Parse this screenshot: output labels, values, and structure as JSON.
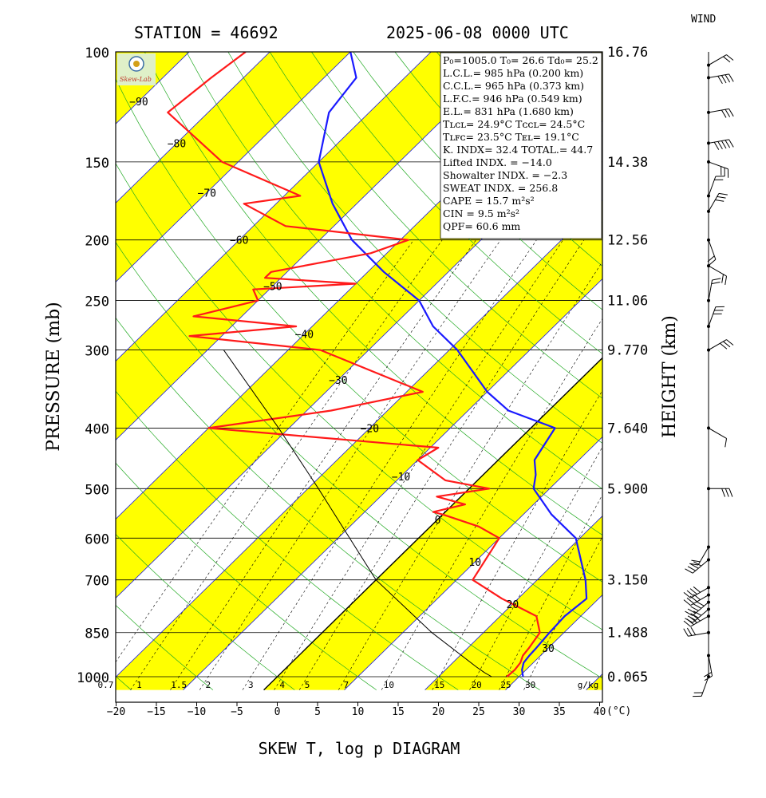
{
  "header": {
    "station": "STATION = 46692",
    "datetime": "2025-06-08 0000 UTC",
    "wind_label": "WIND",
    "footer": "SKEW T, log p DIAGRAM"
  },
  "axes": {
    "y_title": "PRESSURE (mb)",
    "right_title": "HEIGHT (km)",
    "x_unit": "(°C)"
  },
  "chart_data": {
    "type": "line",
    "title": "SKEW T, log p DIAGRAM",
    "xlabel": "(°C)",
    "ylabel": "PRESSURE (mb)",
    "xlim": [
      -20,
      40
    ],
    "ylim": [
      1000,
      100
    ],
    "y_scale": "log",
    "x_ticks": [
      "−20",
      "−15",
      "−10",
      "−5",
      "0",
      "5",
      "10",
      "15",
      "20",
      "25",
      "30",
      "35",
      "40"
    ],
    "pressure_ticks": [
      {
        "p": 100,
        "label": "100",
        "height": "16.76"
      },
      {
        "p": 150,
        "label": "150",
        "height": "14.38"
      },
      {
        "p": 200,
        "label": "200",
        "height": "12.56"
      },
      {
        "p": 250,
        "label": "250",
        "height": "11.06"
      },
      {
        "p": 300,
        "label": "300",
        "height": "9.770"
      },
      {
        "p": 400,
        "label": "400",
        "height": "7.640"
      },
      {
        "p": 500,
        "label": "500",
        "height": "5.900"
      },
      {
        "p": 600,
        "label": "600",
        "height": ""
      },
      {
        "p": 700,
        "label": "700",
        "height": "3.150"
      },
      {
        "p": 850,
        "label": "850",
        "height": "1.488"
      },
      {
        "p": 1000,
        "label": "1000",
        "height": "0.065"
      }
    ],
    "isotherm_labels": [
      {
        "t": -90,
        "label": "−90"
      },
      {
        "t": -80,
        "label": "−80"
      },
      {
        "t": -70,
        "label": "−70"
      },
      {
        "t": -60,
        "label": "−60"
      },
      {
        "t": -50,
        "label": "−50"
      },
      {
        "t": -40,
        "label": "−40"
      },
      {
        "t": -30,
        "label": "−30"
      },
      {
        "t": -20,
        "label": "−20"
      },
      {
        "t": -10,
        "label": "−10"
      },
      {
        "t": 0,
        "label": "0"
      },
      {
        "t": 10,
        "label": "10"
      },
      {
        "t": 20,
        "label": "20"
      },
      {
        "t": 30,
        "label": "30"
      }
    ],
    "mixing_ratio_labels": [
      "0.7",
      "1",
      "1.5",
      "2",
      "3",
      "4",
      "5",
      "7",
      "10",
      "15",
      "20",
      "25",
      "30",
      "g/kg"
    ],
    "mixing_ratio_values": [
      0.7,
      1,
      1.5,
      2,
      3,
      4,
      5,
      7,
      10,
      15,
      20,
      25,
      30
    ],
    "series": [
      {
        "role": "temperature",
        "color": "#1a1aff",
        "points": [
          [
            1000,
            30.5
          ],
          [
            975,
            29.5
          ],
          [
            950,
            28.8
          ],
          [
            925,
            28.6
          ],
          [
            900,
            28.5
          ],
          [
            850,
            28.2
          ],
          [
            800,
            28.0
          ],
          [
            750,
            28.5
          ],
          [
            700,
            26.0
          ],
          [
            600,
            19.5
          ],
          [
            550,
            13.5
          ],
          [
            500,
            8.0
          ],
          [
            475,
            6.5
          ],
          [
            450,
            4.5
          ],
          [
            400,
            3.0
          ],
          [
            375,
            -5.0
          ],
          [
            350,
            -10.0
          ],
          [
            300,
            -19.0
          ],
          [
            275,
            -25.0
          ],
          [
            250,
            -30.0
          ],
          [
            225,
            -38.0
          ],
          [
            200,
            -46.0
          ],
          [
            175,
            -53.0
          ],
          [
            150,
            -60.0
          ],
          [
            125,
            -65.0
          ],
          [
            110,
            -66.0
          ],
          [
            100,
            -70.0
          ]
        ]
      },
      {
        "role": "dewpoint",
        "color": "#ff1a1a",
        "points": [
          [
            1000,
            28.5
          ],
          [
            975,
            28.6
          ],
          [
            950,
            28.4
          ],
          [
            925,
            27.8
          ],
          [
            900,
            27.6
          ],
          [
            850,
            27.0
          ],
          [
            800,
            24.5
          ],
          [
            750,
            18.0
          ],
          [
            700,
            12.0
          ],
          [
            600,
            10.0
          ],
          [
            575,
            6.0
          ],
          [
            550,
            0.0
          ],
          [
            545,
            -1.5
          ],
          [
            530,
            1.5
          ],
          [
            515,
            -3.0
          ],
          [
            500,
            2.5
          ],
          [
            485,
            -4.0
          ],
          [
            450,
            -10.0
          ],
          [
            430,
            -9.0
          ],
          [
            400,
            -40.0
          ],
          [
            375,
            -27.0
          ],
          [
            350,
            -18.0
          ],
          [
            300,
            -36.0
          ],
          [
            285,
            -54.0
          ],
          [
            275,
            -42.0
          ],
          [
            265,
            -56.0
          ],
          [
            250,
            -50.0
          ],
          [
            240,
            -52.0
          ],
          [
            235,
            -40.0
          ],
          [
            230,
            -52.0
          ],
          [
            225,
            -52.0
          ],
          [
            210,
            -42.0
          ],
          [
            200,
            -39.0
          ],
          [
            190,
            -56.0
          ],
          [
            175,
            -64.0
          ],
          [
            170,
            -58.0
          ],
          [
            150,
            -72.0
          ],
          [
            125,
            -85.0
          ],
          [
            110,
            -84.0
          ],
          [
            100,
            -83.0
          ]
        ]
      }
    ],
    "parcel_path": [
      [
        1000,
        26.6
      ],
      [
        985,
        25.2
      ],
      [
        965,
        23.5
      ],
      [
        850,
        13.6
      ],
      [
        700,
        0.0
      ],
      [
        500,
        -18.7
      ],
      [
        400,
        -31.3
      ],
      [
        300,
        -48.0
      ]
    ],
    "wind_barbs": [
      {
        "p": 1000,
        "dir": 200,
        "kt": 15
      },
      {
        "p": 925,
        "dir": 170,
        "kt": 15
      },
      {
        "p": 850,
        "dir": 260,
        "kt": 30
      },
      {
        "p": 800,
        "dir": 240,
        "kt": 35
      },
      {
        "p": 780,
        "dir": 230,
        "kt": 40
      },
      {
        "p": 760,
        "dir": 230,
        "kt": 50
      },
      {
        "p": 740,
        "dir": 240,
        "kt": 40
      },
      {
        "p": 720,
        "dir": 240,
        "kt": 35
      },
      {
        "p": 650,
        "dir": 230,
        "kt": 35
      },
      {
        "p": 620,
        "dir": 210,
        "kt": 20
      },
      {
        "p": 500,
        "dir": 90,
        "kt": 30
      },
      {
        "p": 400,
        "dir": 120,
        "kt": 10
      },
      {
        "p": 300,
        "dir": 60,
        "kt": 25
      },
      {
        "p": 275,
        "dir": 20,
        "kt": 25
      },
      {
        "p": 250,
        "dir": 10,
        "kt": 20
      },
      {
        "p": 220,
        "dir": 120,
        "kt": 20
      },
      {
        "p": 200,
        "dir": 160,
        "kt": 20
      },
      {
        "p": 180,
        "dir": 30,
        "kt": 25
      },
      {
        "p": 170,
        "dir": 20,
        "kt": 20
      },
      {
        "p": 150,
        "dir": 110,
        "kt": 25
      },
      {
        "p": 140,
        "dir": 80,
        "kt": 45
      },
      {
        "p": 125,
        "dir": 80,
        "kt": 30
      },
      {
        "p": 110,
        "dir": 80,
        "kt": 40
      },
      {
        "p": 105,
        "dir": 60,
        "kt": 20
      }
    ]
  },
  "info_box": [
    {
      "text": "P₀=1005.0 T₀= 26.6 Td₀= 25.2"
    },
    {
      "text": "L.C.L.= 985 hPa (0.200 km)"
    },
    {
      "text": "C.C.L.= 965 hPa (0.373 km)"
    },
    {
      "text": "L.F.C.= 946 hPa (0.549 km)"
    },
    {
      "text": "E.L.= 831 hPa (1.680 km)"
    },
    {
      "text": "Tʟᴄʟ= 24.9°C Tᴄᴄʟ= 24.5°C"
    },
    {
      "text": "Tʟꜰᴄ= 23.5°C  Tᴇʟ= 19.1°C"
    },
    {
      "text": "K. INDX= 32.4  TOTAL.= 44.7"
    },
    {
      "text": "Lifted INDX. = −14.0"
    },
    {
      "text": "Showalter INDX. =   −2.3"
    },
    {
      "text": "SWEAT INDX. =  256.8"
    },
    {
      "text": "CAPE =   15.7 m²s²"
    },
    {
      "text": "CIN  =   9.5 m²s²"
    },
    {
      "text": "QPF= 60.6 mm"
    }
  ],
  "colors": {
    "temperature": "#1a1aff",
    "dewpoint": "#ff1a1a",
    "band": "#ffff00",
    "isotherm": "#1a1add",
    "dry_adiabat": "#22aa22",
    "mixing_ratio": "#000000",
    "logo_bg": "#dff0c8",
    "logo_text": "Skew-Lab"
  }
}
